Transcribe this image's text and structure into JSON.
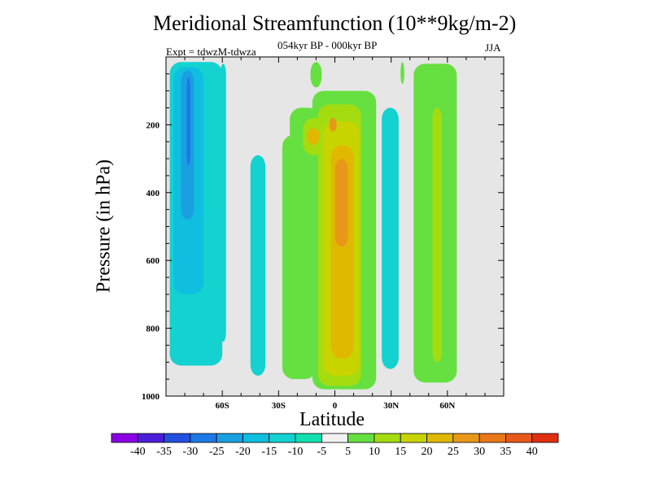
{
  "chart_data": {
    "type": "contour",
    "title": "Meridional Streamfunction (10**9kg/m-2)",
    "subtitle": "054kyr BP - 000kyr BP",
    "expt": "Expt = tdwzM-tdwza",
    "season": "JJA",
    "xlabel": "Latitude",
    "ylabel": "Pressure (in hPa)",
    "xlim": [
      -90,
      90
    ],
    "ylim": [
      1000,
      0
    ],
    "x_ticks": [
      {
        "value": -60,
        "label": "60S"
      },
      {
        "value": -30,
        "label": "30S"
      },
      {
        "value": 0,
        "label": "0"
      },
      {
        "value": 30,
        "label": "30N"
      },
      {
        "value": 60,
        "label": "60N"
      }
    ],
    "y_ticks": [
      {
        "value": 200,
        "label": "200"
      },
      {
        "value": 400,
        "label": "400"
      },
      {
        "value": 600,
        "label": "600"
      },
      {
        "value": 800,
        "label": "800"
      },
      {
        "value": 1000,
        "label": "1000"
      }
    ],
    "background_color": "#e6e6e6",
    "colorbar": {
      "labels": [
        "-40",
        "-35",
        "-30",
        "-25",
        "-20",
        "-15",
        "-10",
        "-5",
        "5",
        "10",
        "15",
        "20",
        "25",
        "30",
        "35",
        "40"
      ],
      "colors": [
        "#8a00e2",
        "#4b1fd8",
        "#2350e0",
        "#1e78e6",
        "#1aa0e0",
        "#10bee0",
        "#13d2d0",
        "#13e0b0",
        "#f2f2f2",
        "#66e040",
        "#a4dc10",
        "#c8d400",
        "#e0b800",
        "#e89818",
        "#e87818",
        "#e85818",
        "#e03010"
      ]
    },
    "regions": [
      {
        "lat": [
          -88,
          -60
        ],
        "p": [
          15,
          910
        ],
        "level": -10
      },
      {
        "lat": [
          -86,
          -70
        ],
        "p": [
          30,
          700
        ],
        "level": -15
      },
      {
        "lat": [
          -82,
          -75
        ],
        "p": [
          40,
          480
        ],
        "level": -20
      },
      {
        "lat": [
          -79,
          -77
        ],
        "p": [
          60,
          320
        ],
        "level": -25
      },
      {
        "lat": [
          -61,
          -58
        ],
        "p": [
          20,
          840
        ],
        "level": -10
      },
      {
        "lat": [
          -45,
          -37
        ],
        "p": [
          290,
          940
        ],
        "level": -10
      },
      {
        "lat": [
          -6,
          -1
        ],
        "p": [
          300,
          570
        ],
        "level": -10
      },
      {
        "lat": [
          25,
          34
        ],
        "p": [
          150,
          920
        ],
        "level": -10
      },
      {
        "lat": [
          -28,
          -10
        ],
        "p": [
          230,
          950
        ],
        "level": 5
      },
      {
        "lat": [
          -24,
          -8
        ],
        "p": [
          150,
          480
        ],
        "level": 5
      },
      {
        "lat": [
          -12,
          22
        ],
        "p": [
          100,
          980
        ],
        "level": 5
      },
      {
        "lat": [
          -9,
          14
        ],
        "p": [
          140,
          970
        ],
        "level": 10
      },
      {
        "lat": [
          -17,
          -4
        ],
        "p": [
          180,
          290
        ],
        "level": 10
      },
      {
        "lat": [
          -6,
          13
        ],
        "p": [
          190,
          940
        ],
        "level": 15
      },
      {
        "lat": [
          -15,
          -8
        ],
        "p": [
          210,
          260
        ],
        "level": 20
      },
      {
        "lat": [
          -2,
          10
        ],
        "p": [
          260,
          890
        ],
        "level": 20
      },
      {
        "lat": [
          0,
          7
        ],
        "p": [
          300,
          560
        ],
        "level": 25
      },
      {
        "lat": [
          -3,
          1
        ],
        "p": [
          180,
          220
        ],
        "level": 25
      },
      {
        "lat": [
          42,
          65
        ],
        "p": [
          20,
          960
        ],
        "level": 5
      },
      {
        "lat": [
          52,
          57
        ],
        "p": [
          150,
          900
        ],
        "level": 10
      },
      {
        "lat": [
          -13,
          -7
        ],
        "p": [
          15,
          90
        ],
        "level": 5
      },
      {
        "lat": [
          35,
          37
        ],
        "p": [
          15,
          80
        ],
        "level": 5
      }
    ]
  }
}
